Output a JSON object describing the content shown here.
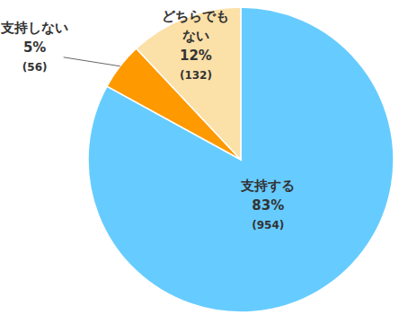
{
  "chart_data": {
    "type": "pie",
    "categories": [
      "支持する",
      "支持しない",
      "どちらでもない"
    ],
    "values": [
      83,
      5,
      12
    ],
    "value_labels": [
      "83%",
      "5%",
      "12%"
    ],
    "counts": [
      954,
      56,
      132
    ],
    "count_labels": [
      "(954)",
      "(56)",
      "(132)"
    ],
    "colors": [
      "#66ccff",
      "#ff9900",
      "#fbe0a8"
    ],
    "data_labels": true
  }
}
